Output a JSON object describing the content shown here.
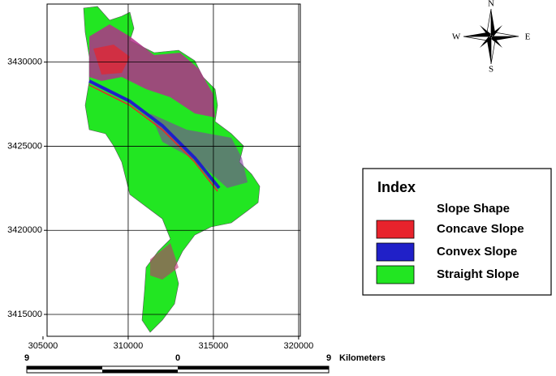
{
  "map": {
    "xlim": [
      305240,
      320100
    ],
    "ylim": [
      3413700,
      3433450
    ],
    "xticks": [
      305000,
      310000,
      315000,
      320000
    ],
    "yticks": [
      3415000,
      3420000,
      3425000,
      3430000
    ],
    "grid": true
  },
  "compass": {
    "n": "N",
    "s": "S",
    "e": "E",
    "w": "W"
  },
  "legend": {
    "title": "Index",
    "subtitle": "Slope Shape",
    "items": [
      {
        "label": "Concave Slope",
        "color": "#e8232c"
      },
      {
        "label": "Convex Slope",
        "color": "#2020c8"
      },
      {
        "label": "Straight Slope",
        "color": "#22e622"
      }
    ]
  },
  "scale_bar": {
    "left": "9",
    "middle": "0",
    "right": "9",
    "unit": "Kilometers"
  }
}
